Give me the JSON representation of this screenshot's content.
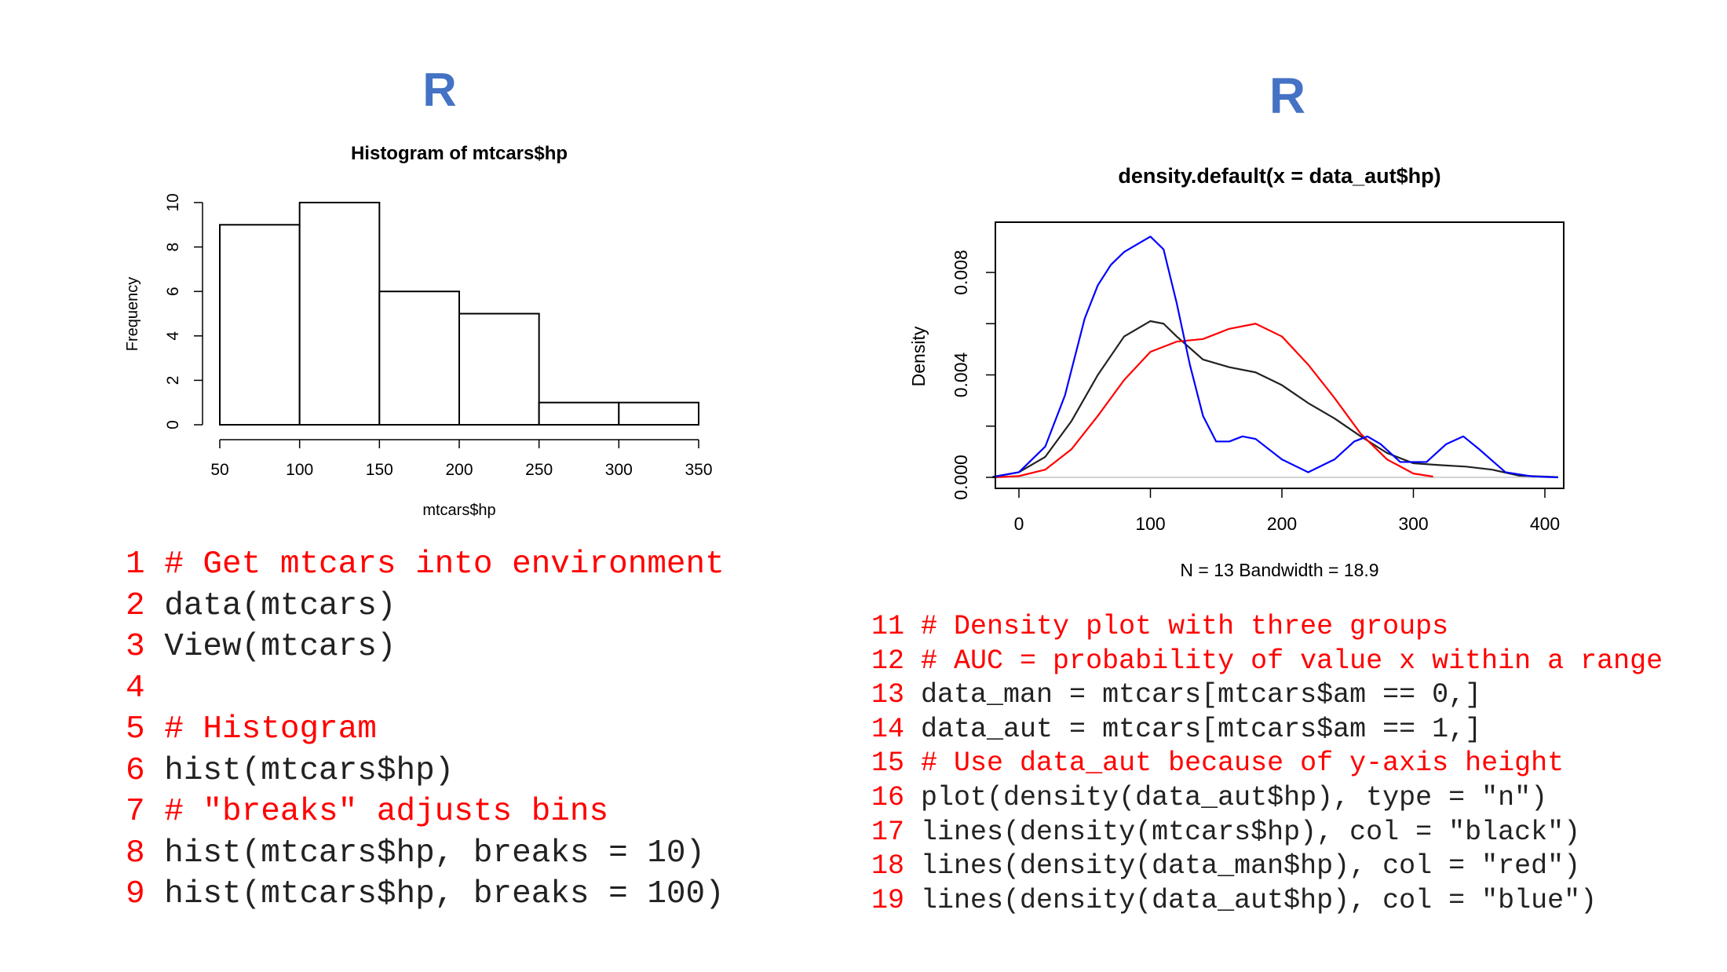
{
  "panels": {
    "left_title": "R",
    "right_title": "R"
  },
  "chart_data": [
    {
      "type": "bar",
      "title": "Histogram of mtcars$hp",
      "xlabel": "mtcars$hp",
      "ylabel": "Frequency",
      "bins": [
        [
          50,
          100
        ],
        [
          100,
          150
        ],
        [
          150,
          200
        ],
        [
          200,
          250
        ],
        [
          250,
          300
        ],
        [
          300,
          350
        ]
      ],
      "values": [
        9,
        10,
        6,
        5,
        1,
        1
      ],
      "xticks": [
        50,
        100,
        150,
        200,
        250,
        300,
        350
      ],
      "yticks": [
        0,
        2,
        4,
        6,
        8,
        10
      ],
      "xlim": [
        50,
        350
      ],
      "ylim": [
        0,
        10
      ]
    },
    {
      "type": "line",
      "title": "density.default(x = data_aut$hp)",
      "xlabel": "N = 13   Bandwidth = 18.9",
      "ylabel": "Density",
      "xticks": [
        0,
        100,
        200,
        300,
        400
      ],
      "yticks": [
        "0.000",
        "0.004",
        "0.008"
      ],
      "xlim": [
        -20,
        410
      ],
      "ylim": [
        0,
        0.0095
      ],
      "series": [
        {
          "color": "#d3d3d3",
          "x": [
            -20,
            410
          ],
          "y": [
            0,
            0
          ]
        },
        {
          "color": "#222222",
          "x": [
            -20,
            0,
            20,
            40,
            60,
            80,
            100,
            110,
            120,
            140,
            160,
            180,
            200,
            220,
            240,
            260,
            280,
            300,
            320,
            340,
            360,
            380,
            410
          ],
          "y": [
            2e-05,
            0.0002,
            0.0008,
            0.0022,
            0.004,
            0.0055,
            0.0061,
            0.006,
            0.0055,
            0.0046,
            0.0043,
            0.0041,
            0.0036,
            0.0029,
            0.0023,
            0.0016,
            0.00095,
            0.00055,
            0.00048,
            0.00042,
            0.0003,
            7e-05,
            1e-05
          ]
        },
        {
          "color": "#ff0000",
          "x": [
            -20,
            0,
            20,
            40,
            60,
            80,
            100,
            120,
            140,
            160,
            180,
            200,
            220,
            240,
            260,
            280,
            300,
            315
          ],
          "y": [
            0.0,
            5e-05,
            0.0003,
            0.0011,
            0.0024,
            0.0038,
            0.0049,
            0.0053,
            0.0054,
            0.0058,
            0.006,
            0.0055,
            0.0044,
            0.0031,
            0.0017,
            0.0007,
            0.00015,
            3e-05
          ]
        },
        {
          "color": "#0000ff",
          "x": [
            -20,
            0,
            20,
            35,
            50,
            60,
            70,
            80,
            90,
            100,
            110,
            120,
            130,
            140,
            150,
            160,
            170,
            180,
            200,
            220,
            240,
            255,
            265,
            275,
            290,
            310,
            325,
            338,
            350,
            370,
            390,
            410
          ],
          "y": [
            1e-05,
            0.0002,
            0.0012,
            0.0032,
            0.0062,
            0.0075,
            0.0083,
            0.0088,
            0.0091,
            0.0094,
            0.0089,
            0.0068,
            0.0044,
            0.0024,
            0.0014,
            0.0014,
            0.0016,
            0.0015,
            0.0007,
            0.0002,
            0.0007,
            0.0014,
            0.0016,
            0.0013,
            0.0006,
            0.0006,
            0.0013,
            0.0016,
            0.0011,
            0.0002,
            4e-05,
            0.0
          ]
        }
      ]
    }
  ],
  "code_left": [
    {
      "n": "1",
      "text": "# Get mtcars into environment",
      "kind": "comment"
    },
    {
      "n": "2",
      "text": "data(mtcars)",
      "kind": "code"
    },
    {
      "n": "3",
      "text": "View(mtcars)",
      "kind": "code"
    },
    {
      "n": "4",
      "text": "",
      "kind": "code"
    },
    {
      "n": "5",
      "text": "# Histogram",
      "kind": "comment"
    },
    {
      "n": "6",
      "text": "hist(mtcars$hp)",
      "kind": "code"
    },
    {
      "n": "7",
      "text": "# \"breaks\" adjusts bins",
      "kind": "comment"
    },
    {
      "n": "8",
      "text": "hist(mtcars$hp, breaks = 10)",
      "kind": "code"
    },
    {
      "n": "9",
      "text": "hist(mtcars$hp, breaks = 100)",
      "kind": "code"
    }
  ],
  "code_right": [
    {
      "n": "11",
      "text": "# Density plot with three groups",
      "kind": "comment"
    },
    {
      "n": "12",
      "text": "# AUC = probability of value x within a range",
      "kind": "comment"
    },
    {
      "n": "13",
      "text": "data_man = mtcars[mtcars$am == 0,]",
      "kind": "code"
    },
    {
      "n": "14",
      "text": "data_aut = mtcars[mtcars$am == 1,]",
      "kind": "code"
    },
    {
      "n": "15",
      "text": "# Use data_aut because of y-axis height",
      "kind": "comment"
    },
    {
      "n": "16",
      "text": "plot(density(data_aut$hp), type = \"n\")",
      "kind": "code"
    },
    {
      "n": "17",
      "text": "lines(density(mtcars$hp), col = \"black\")",
      "kind": "code"
    },
    {
      "n": "18",
      "text": "lines(density(data_man$hp), col = \"red\")",
      "kind": "code"
    },
    {
      "n": "19",
      "text": "lines(density(data_aut$hp), col = \"blue\")",
      "kind": "code"
    }
  ]
}
